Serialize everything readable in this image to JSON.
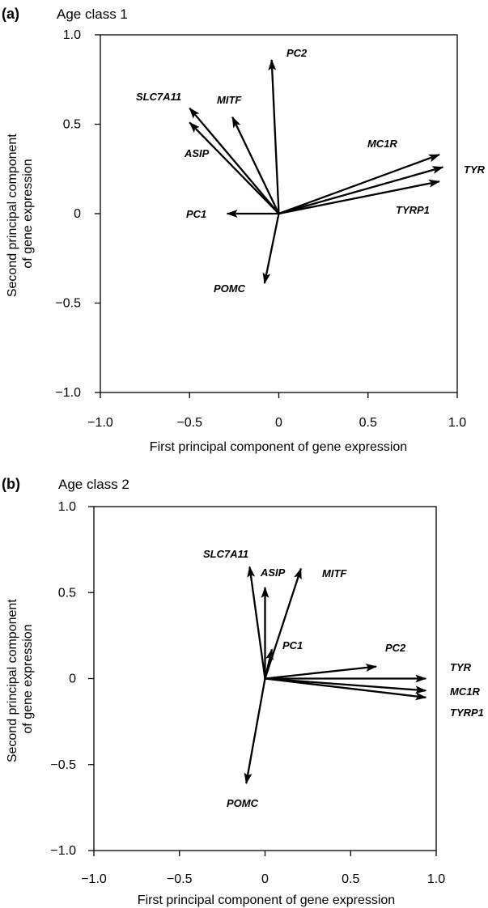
{
  "chart_data": [
    {
      "type": "biplot",
      "panel_letter": "(a)",
      "title": "Age class 1",
      "xlabel": "First principal component of gene expression",
      "ylabel": "Second principal component\nof gene expression",
      "xlim": [
        -1.0,
        1.0
      ],
      "ylim": [
        -1.0,
        1.0
      ],
      "xticks": [
        -1.0,
        -0.5,
        0,
        0.5,
        1.0
      ],
      "xtick_labels": [
        "−1.0",
        "−0.5",
        "0",
        "0.5",
        "1.0"
      ],
      "yticks": [
        -1.0,
        -0.5,
        0,
        0.5,
        1.0
      ],
      "ytick_labels": [
        "−1.0",
        "−0.5",
        "0",
        "0.5",
        "1.0"
      ],
      "grid": false,
      "vectors": [
        {
          "name": "PC2",
          "x": -0.04,
          "y": 0.86
        },
        {
          "name": "MITF",
          "x": -0.26,
          "y": 0.54
        },
        {
          "name": "SLC7A11",
          "x": -0.5,
          "y": 0.59
        },
        {
          "name": "ASIP",
          "x": -0.5,
          "y": 0.51
        },
        {
          "name": "PC1",
          "x": -0.29,
          "y": 0.0
        },
        {
          "name": "POMC",
          "x": -0.08,
          "y": -0.39
        },
        {
          "name": "MC1R",
          "x": 0.9,
          "y": 0.33
        },
        {
          "name": "TYR",
          "x": 0.92,
          "y": 0.26
        },
        {
          "name": "TYRP1",
          "x": 0.9,
          "y": 0.18
        }
      ]
    },
    {
      "type": "biplot",
      "panel_letter": "(b)",
      "title": "Age class 2",
      "xlabel": "First principal component of gene expression",
      "ylabel": "Second principal component\nof gene expression",
      "xlim": [
        -1.0,
        1.0
      ],
      "ylim": [
        -1.0,
        1.0
      ],
      "xticks": [
        -1.0,
        -0.5,
        0,
        0.5,
        1.0
      ],
      "xtick_labels": [
        "−1.0",
        "−0.5",
        "0",
        "0.5",
        "1.0"
      ],
      "yticks": [
        -1.0,
        -0.5,
        0,
        0.5,
        1.0
      ],
      "ytick_labels": [
        "−1.0",
        "−0.5",
        "0",
        "0.5",
        "1.0"
      ],
      "grid": false,
      "vectors": [
        {
          "name": "SLC7A11",
          "x": -0.09,
          "y": 0.65
        },
        {
          "name": "ASIP",
          "x": 0.0,
          "y": 0.53
        },
        {
          "name": "MITF",
          "x": 0.21,
          "y": 0.64
        },
        {
          "name": "PC1",
          "x": 0.04,
          "y": 0.17
        },
        {
          "name": "PC2",
          "x": 0.65,
          "y": 0.07
        },
        {
          "name": "TYR",
          "x": 0.94,
          "y": 0.0
        },
        {
          "name": "MC1R",
          "x": 0.94,
          "y": -0.07
        },
        {
          "name": "TYRP1",
          "x": 0.94,
          "y": -0.11
        },
        {
          "name": "POMC",
          "x": -0.11,
          "y": -0.61
        }
      ]
    }
  ]
}
